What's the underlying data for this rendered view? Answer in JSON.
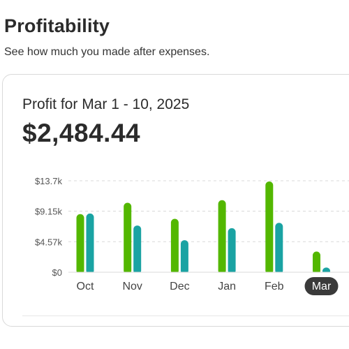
{
  "section": {
    "title": "Profitability",
    "subtitle": "See how much you made after expenses."
  },
  "card": {
    "period_label": "Profit for Mar 1 - 10, 2025",
    "amount": "$2,484.44"
  },
  "colors": {
    "green": "#53b700",
    "teal": "#1aa3a3",
    "grid": "#d9d9d9",
    "selected_pill": "#3a3a3a"
  },
  "chart_data": {
    "type": "bar",
    "title": "",
    "xlabel": "",
    "ylabel": "",
    "categories": [
      "Oct",
      "Nov",
      "Dec",
      "Jan",
      "Feb",
      "Mar"
    ],
    "selected_category": "Mar",
    "y_ticks": [
      {
        "value": 0,
        "label": "$0"
      },
      {
        "value": 4.57,
        "label": "$4.57k"
      },
      {
        "value": 9.15,
        "label": "$9.15k"
      },
      {
        "value": 13.7,
        "label": "$13.7k"
      }
    ],
    "ylim": [
      0,
      13.7
    ],
    "grid": true,
    "series": [
      {
        "color_key": "green",
        "values": [
          8.7,
          10.4,
          8.0,
          10.8,
          13.6,
          3.1
        ]
      },
      {
        "color_key": "teal",
        "values": [
          8.8,
          7.0,
          4.8,
          6.6,
          7.4,
          0.7
        ]
      }
    ]
  }
}
